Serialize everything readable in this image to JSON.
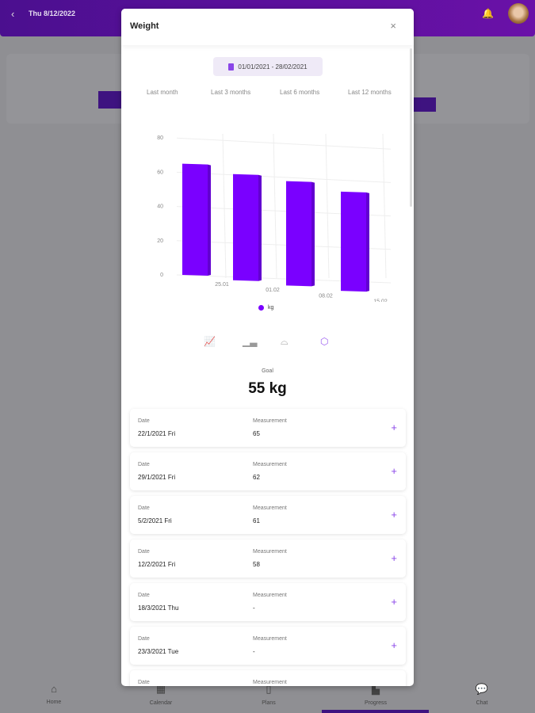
{
  "header": {
    "date": "Thu 8/12/2022"
  },
  "nav": [
    {
      "label": "Home",
      "icon": "home-icon"
    },
    {
      "label": "Calendar",
      "icon": "calendar-icon"
    },
    {
      "label": "Plans",
      "icon": "plans-icon"
    },
    {
      "label": "Progress",
      "icon": "progress-icon"
    },
    {
      "label": "Chat",
      "icon": "chat-icon"
    }
  ],
  "modal": {
    "title": "Weight",
    "date_range": "01/01/2021 - 28/02/2021",
    "tabs": [
      "Last month",
      "Last 3 months",
      "Last 6 months",
      "Last 12 months"
    ],
    "chart_types": [
      "line-chart-icon",
      "bar-chart-icon",
      "area-chart-icon",
      "3d-bar-chart-icon"
    ],
    "goal_label": "Goal",
    "goal_value": "55 kg",
    "date_label": "Date",
    "measurement_label": "Measurement",
    "rows": [
      {
        "date": "22/1/2021 Fri",
        "value": "65"
      },
      {
        "date": "29/1/2021 Fri",
        "value": "62"
      },
      {
        "date": "5/2/2021 Fri",
        "value": "61"
      },
      {
        "date": "12/2/2021 Fri",
        "value": "58"
      },
      {
        "date": "18/3/2021 Thu",
        "value": "-"
      },
      {
        "date": "23/3/2021 Tue",
        "value": "-"
      },
      {
        "date": "",
        "value": ""
      }
    ]
  },
  "chart_data": {
    "type": "bar",
    "style": "3d",
    "categories": [
      "25.01",
      "01.02",
      "08.02",
      "15.02"
    ],
    "series": [
      {
        "name": "kg",
        "values": [
          65,
          62,
          61,
          58
        ]
      }
    ],
    "yticks": [
      0,
      20,
      40,
      60,
      80
    ],
    "ylim": [
      0,
      80
    ],
    "grid": true,
    "legend": "bottom",
    "color": "#7a00ff"
  },
  "colors": {
    "accent": "#7a00ff",
    "header": "#5a10a0"
  }
}
